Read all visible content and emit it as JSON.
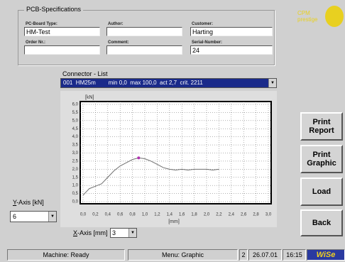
{
  "header": {
    "group_title": "PCB-Specifications",
    "logo_line1": "CPM",
    "logo_line2": "prestige"
  },
  "fields": [
    {
      "label": "PC-Board Type:",
      "value": "HM-Test"
    },
    {
      "label": "Author:",
      "value": ""
    },
    {
      "label": "Customer:",
      "value": "Harting"
    },
    {
      "label": "Order Nr.:",
      "value": ""
    },
    {
      "label": "Comment:",
      "value": ""
    },
    {
      "label": "Serial-Number:",
      "value": "24"
    }
  ],
  "connector_list": {
    "label": "Connector - List",
    "selected": "001  HM25m        min 0,0  max 100,0  act 2,7  crit. 2211"
  },
  "chart_data": {
    "type": "line",
    "y_label": "[kN]",
    "x_label": "[mm]",
    "color": "#707070",
    "x": [
      0.0,
      0.05,
      0.1,
      0.2,
      0.3,
      0.4,
      0.5,
      0.6,
      0.7,
      0.8,
      0.9,
      1.0,
      1.1,
      1.2,
      1.3,
      1.4,
      1.5,
      1.6,
      1.7,
      1.8,
      1.9,
      2.0,
      2.1,
      2.2
    ],
    "values": [
      0.4,
      0.6,
      0.8,
      0.95,
      1.1,
      1.5,
      1.9,
      2.2,
      2.4,
      2.6,
      2.7,
      2.65,
      2.5,
      2.3,
      2.1,
      2.0,
      1.95,
      2.0,
      1.95,
      2.0,
      2.0,
      2.0,
      1.95,
      2.0
    ],
    "marker": {
      "x": 0.9,
      "y": 2.7,
      "color": "#b030b0"
    },
    "xlim": [
      0,
      3
    ],
    "ylim": [
      0,
      6
    ],
    "grid": true,
    "xticks": [
      {
        "value": 0,
        "label": "0,0"
      },
      {
        "value": 0.2,
        "label": "0,2"
      },
      {
        "value": 0.4,
        "label": "0,4"
      },
      {
        "value": 0.6,
        "label": "0,6"
      },
      {
        "value": 0.8,
        "label": "0,8"
      },
      {
        "value": 1.0,
        "label": "1,0"
      },
      {
        "value": 1.2,
        "label": "1,2"
      },
      {
        "value": 1.4,
        "label": "1,4"
      },
      {
        "value": 1.6,
        "label": "1,6"
      },
      {
        "value": 1.8,
        "label": "1,8"
      },
      {
        "value": 2.0,
        "label": "2,0"
      },
      {
        "value": 2.2,
        "label": "2,2"
      },
      {
        "value": 2.4,
        "label": "2,4"
      },
      {
        "value": 2.6,
        "label": "2,6"
      },
      {
        "value": 2.8,
        "label": "2,8"
      },
      {
        "value": 3.0,
        "label": "3,0"
      }
    ],
    "yticks": [
      {
        "value": 0,
        "label": "0,0"
      },
      {
        "value": 0.5,
        "label": "0,5"
      },
      {
        "value": 1.0,
        "label": "1,0"
      },
      {
        "value": 1.5,
        "label": "1,5"
      },
      {
        "value": 2.0,
        "label": "2,0"
      },
      {
        "value": 2.5,
        "label": "2,5"
      },
      {
        "value": 3.0,
        "label": "3,0"
      },
      {
        "value": 3.5,
        "label": "3,5"
      },
      {
        "value": 4.0,
        "label": "4,0"
      },
      {
        "value": 4.5,
        "label": "4,5"
      },
      {
        "value": 5.0,
        "label": "5,0"
      },
      {
        "value": 5.5,
        "label": "5,5"
      },
      {
        "value": 6.0,
        "label": "6,0"
      }
    ]
  },
  "y_axis_control": {
    "label": "Y-Axis [kN]",
    "value": "6"
  },
  "x_axis_control": {
    "label": "X-Axis [mm]",
    "value": "3"
  },
  "buttons": [
    "Print Report",
    "Print Graphic",
    "Load",
    "Back"
  ],
  "status_bar": {
    "machine": "Machine: Ready",
    "menu": "Menu: Graphic",
    "number": "2",
    "date": "26.07.01",
    "time": "16:15",
    "logo": "WiSe"
  }
}
